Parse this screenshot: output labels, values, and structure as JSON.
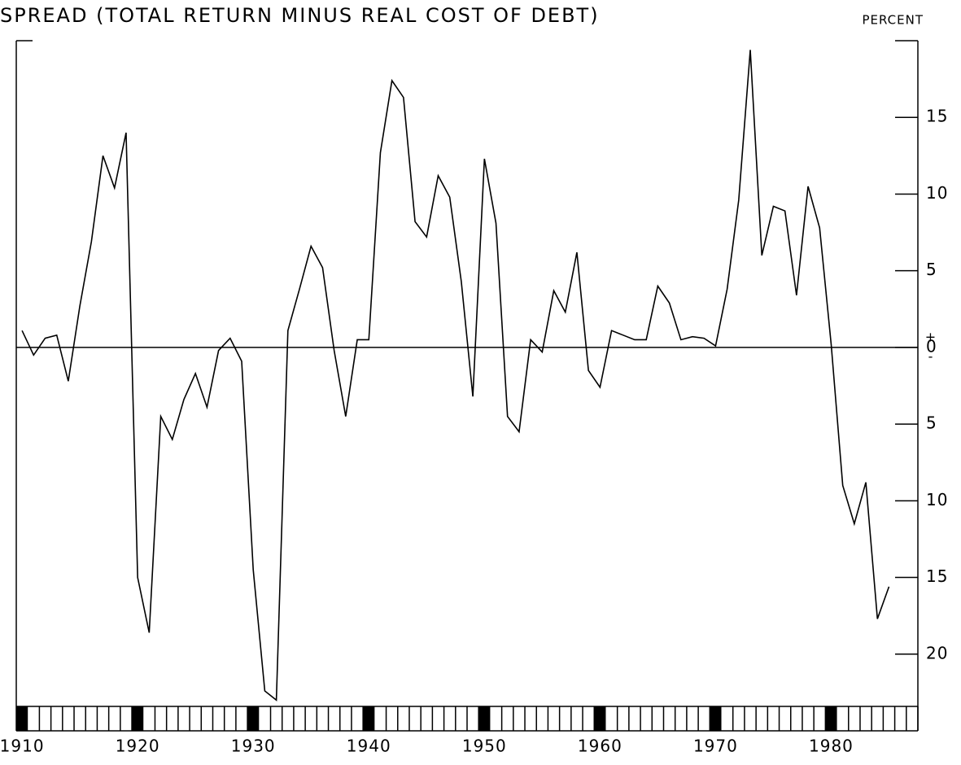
{
  "chart_data": {
    "type": "line",
    "title": "SPREAD (TOTAL RETURN MINUS REAL COST OF DEBT)",
    "y_axis_label": "PERCENT",
    "zero_signs": {
      "above": "+",
      "below": "-"
    },
    "x": [
      1910,
      1911,
      1912,
      1913,
      1914,
      1915,
      1916,
      1917,
      1918,
      1919,
      1920,
      1921,
      1922,
      1923,
      1924,
      1925,
      1926,
      1927,
      1928,
      1929,
      1930,
      1931,
      1932,
      1933,
      1934,
      1935,
      1936,
      1937,
      1938,
      1939,
      1940,
      1941,
      1942,
      1943,
      1944,
      1945,
      1946,
      1947,
      1948,
      1949,
      1950,
      1951,
      1952,
      1953,
      1954,
      1955,
      1956,
      1957,
      1958,
      1959,
      1960,
      1961,
      1962,
      1963,
      1964,
      1965,
      1966,
      1967,
      1968,
      1969,
      1970,
      1971,
      1972,
      1973,
      1974,
      1975,
      1976,
      1977,
      1978,
      1979,
      1980,
      1981,
      1982,
      1983,
      1984,
      1985
    ],
    "series": [
      {
        "color": "#000000",
        "values": [
          1.1,
          -0.5,
          0.6,
          0.8,
          -2.2,
          2.7,
          6.9,
          12.5,
          10.4,
          14,
          -15,
          -18.6,
          -4.5,
          -6,
          -3.4,
          -1.7,
          -3.9,
          -0.2,
          0.6,
          -0.9,
          -14.5,
          -22.4,
          -23,
          1.1,
          3.8,
          6.6,
          5.2,
          -0.2,
          -4.5,
          0.5,
          0.5,
          12.7,
          17.4,
          16.3,
          8.2,
          7.2,
          11.2,
          9.8,
          4.3,
          -3.2,
          12.3,
          8.1,
          -4.5,
          -5.5,
          0.5,
          -0.3,
          3.7,
          2.3,
          6.2,
          -1.5,
          -2.6,
          1.1,
          0.8,
          0.5,
          0.5,
          4,
          2.9,
          0.5,
          0.7,
          0.6,
          0.1,
          3.8,
          9.6,
          19.4,
          6,
          9.2,
          8.9,
          3.4,
          10.5,
          7.8,
          0.2,
          -9,
          -11.5,
          -8.8,
          -17.7,
          -15.6
        ]
      }
    ],
    "xlim": [
      1909.5,
      1987.5
    ],
    "xticks": [
      1910,
      1920,
      1930,
      1940,
      1950,
      1960,
      1970,
      1980
    ],
    "ylim": [
      -25,
      20
    ],
    "yticks": [
      15,
      10,
      5,
      0,
      {
        "value": -5,
        "label": "5"
      },
      {
        "value": -10,
        "label": "10"
      },
      {
        "value": -15,
        "label": "15"
      },
      {
        "value": -20,
        "label": "20"
      }
    ],
    "zero_line": true
  }
}
